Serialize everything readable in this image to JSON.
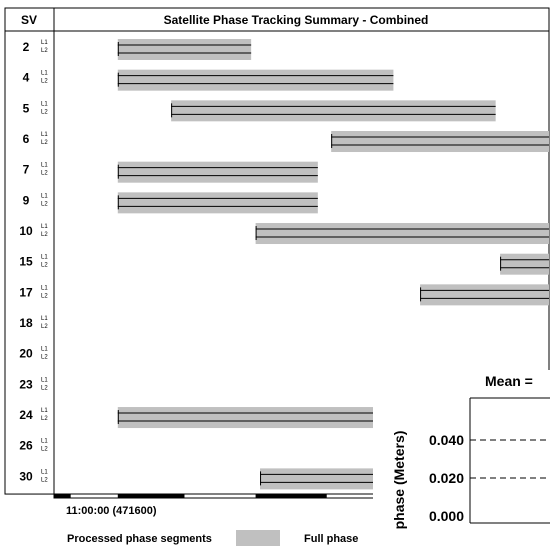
{
  "chart_data": {
    "type": "gantt",
    "title": "Satellite Phase Tracking Summary - Combined",
    "column_header": "SV",
    "signal_labels": [
      "L1",
      "L2"
    ],
    "time_start_label": "11:00:00 (471600)",
    "time_unit": "minutes after 11:00:00",
    "x_range": [
      0,
      55
    ],
    "satellites": [
      {
        "sv": "2",
        "segments": [
          [
            6.5,
            21.5
          ]
        ]
      },
      {
        "sv": "4",
        "segments": [
          [
            6.5,
            37.5
          ]
        ]
      },
      {
        "sv": "5",
        "segments": [
          [
            12.5,
            49
          ]
        ]
      },
      {
        "sv": "6",
        "segments": [
          [
            30.5,
            55
          ]
        ]
      },
      {
        "sv": "7",
        "segments": [
          [
            6.5,
            29
          ]
        ]
      },
      {
        "sv": "9",
        "segments": [
          [
            6.5,
            29
          ]
        ]
      },
      {
        "sv": "10",
        "segments": [
          [
            22,
            55
          ]
        ]
      },
      {
        "sv": "15",
        "segments": [
          [
            49.5,
            55
          ]
        ]
      },
      {
        "sv": "17",
        "segments": [
          [
            40.5,
            55
          ]
        ]
      },
      {
        "sv": "18",
        "segments": []
      },
      {
        "sv": "20",
        "segments": []
      },
      {
        "sv": "23",
        "segments": []
      },
      {
        "sv": "24",
        "segments": [
          [
            6.5,
            38
          ]
        ]
      },
      {
        "sv": "26",
        "segments": []
      },
      {
        "sv": "30",
        "segments": [
          [
            22.5,
            38
          ]
        ]
      }
    ],
    "legend": [
      {
        "label": "Processed phase segments",
        "swatch_color": "#c0c0c0"
      },
      {
        "label": "Full phase"
      }
    ],
    "inset": {
      "title": "Mean =",
      "ylabel": "phase (Meters)",
      "y_ticks": [
        "0.040",
        "0.020",
        "0.000"
      ],
      "y_tick_values": [
        0.04,
        0.02,
        0.0
      ],
      "dashed_levels": [
        0.04,
        0.02
      ]
    },
    "colors": {
      "segment": "#c0c0c0",
      "line": "#000000"
    }
  }
}
